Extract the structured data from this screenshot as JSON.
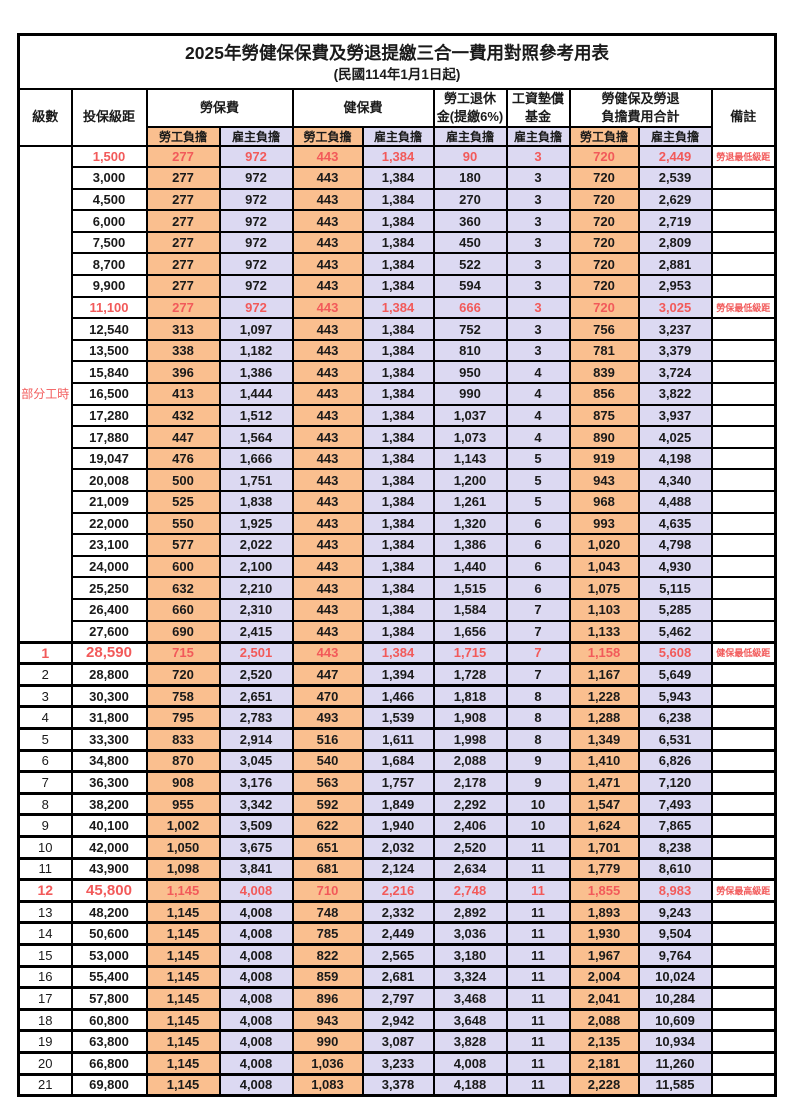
{
  "title": "2025年勞健保保費及勞退提繳三合一費用對照參考用表",
  "subtitle": "(民國114年1月1日起)",
  "colors": {
    "employee_bg": "#FABF8F",
    "employer_bg": "#DCD9F2",
    "highlight_red": "#F25A5A",
    "border": "#000000"
  },
  "header": {
    "level": "級數",
    "bracket": "投保級距",
    "labor_insurance": "勞保費",
    "health_insurance": "健保費",
    "pension_line1": "勞工退休",
    "pension_line2": "金(提繳6%)",
    "wage_fund_line1": "工資墊償",
    "wage_fund_line2": "基金",
    "total_line1": "勞健保及勞退",
    "total_line2": "負擔費用合計",
    "note": "備註",
    "employee": "勞工負擔",
    "employer": "雇主負擔"
  },
  "table": {
    "part_time_label": "部分工時",
    "part_time_span": 23,
    "rows": [
      {
        "level": "",
        "bracket": "1,500",
        "values": [
          "277",
          "972",
          "443",
          "1,384",
          "90",
          "3",
          "720",
          "2,449"
        ],
        "note": "勞退最低級距",
        "red": true,
        "bold": false
      },
      {
        "level": "",
        "bracket": "3,000",
        "values": [
          "277",
          "972",
          "443",
          "1,384",
          "180",
          "3",
          "720",
          "2,539"
        ],
        "note": "",
        "red": false,
        "bold": false
      },
      {
        "level": "",
        "bracket": "4,500",
        "values": [
          "277",
          "972",
          "443",
          "1,384",
          "270",
          "3",
          "720",
          "2,629"
        ],
        "note": "",
        "red": false,
        "bold": false
      },
      {
        "level": "",
        "bracket": "6,000",
        "values": [
          "277",
          "972",
          "443",
          "1,384",
          "360",
          "3",
          "720",
          "2,719"
        ],
        "note": "",
        "red": false,
        "bold": false
      },
      {
        "level": "",
        "bracket": "7,500",
        "values": [
          "277",
          "972",
          "443",
          "1,384",
          "450",
          "3",
          "720",
          "2,809"
        ],
        "note": "",
        "red": false,
        "bold": false
      },
      {
        "level": "",
        "bracket": "8,700",
        "values": [
          "277",
          "972",
          "443",
          "1,384",
          "522",
          "3",
          "720",
          "2,881"
        ],
        "note": "",
        "red": false,
        "bold": false
      },
      {
        "level": "",
        "bracket": "9,900",
        "values": [
          "277",
          "972",
          "443",
          "1,384",
          "594",
          "3",
          "720",
          "2,953"
        ],
        "note": "",
        "red": false,
        "bold": false
      },
      {
        "level": "",
        "bracket": "11,100",
        "values": [
          "277",
          "972",
          "443",
          "1,384",
          "666",
          "3",
          "720",
          "3,025"
        ],
        "note": "勞保最低級距",
        "red": true,
        "bold": false
      },
      {
        "level": "",
        "bracket": "12,540",
        "values": [
          "313",
          "1,097",
          "443",
          "1,384",
          "752",
          "3",
          "756",
          "3,237"
        ],
        "note": "",
        "red": false,
        "bold": false
      },
      {
        "level": "",
        "bracket": "13,500",
        "values": [
          "338",
          "1,182",
          "443",
          "1,384",
          "810",
          "3",
          "781",
          "3,379"
        ],
        "note": "",
        "red": false,
        "bold": false
      },
      {
        "level": "",
        "bracket": "15,840",
        "values": [
          "396",
          "1,386",
          "443",
          "1,384",
          "950",
          "4",
          "839",
          "3,724"
        ],
        "note": "",
        "red": false,
        "bold": false
      },
      {
        "level": "",
        "bracket": "16,500",
        "values": [
          "413",
          "1,444",
          "443",
          "1,384",
          "990",
          "4",
          "856",
          "3,822"
        ],
        "note": "",
        "red": false,
        "bold": false
      },
      {
        "level": "",
        "bracket": "17,280",
        "values": [
          "432",
          "1,512",
          "443",
          "1,384",
          "1,037",
          "4",
          "875",
          "3,937"
        ],
        "note": "",
        "red": false,
        "bold": false
      },
      {
        "level": "",
        "bracket": "17,880",
        "values": [
          "447",
          "1,564",
          "443",
          "1,384",
          "1,073",
          "4",
          "890",
          "4,025"
        ],
        "note": "",
        "red": false,
        "bold": false
      },
      {
        "level": "",
        "bracket": "19,047",
        "values": [
          "476",
          "1,666",
          "443",
          "1,384",
          "1,143",
          "5",
          "919",
          "4,198"
        ],
        "note": "",
        "red": false,
        "bold": false
      },
      {
        "level": "",
        "bracket": "20,008",
        "values": [
          "500",
          "1,751",
          "443",
          "1,384",
          "1,200",
          "5",
          "943",
          "4,340"
        ],
        "note": "",
        "red": false,
        "bold": false
      },
      {
        "level": "",
        "bracket": "21,009",
        "values": [
          "525",
          "1,838",
          "443",
          "1,384",
          "1,261",
          "5",
          "968",
          "4,488"
        ],
        "note": "",
        "red": false,
        "bold": false
      },
      {
        "level": "",
        "bracket": "22,000",
        "values": [
          "550",
          "1,925",
          "443",
          "1,384",
          "1,320",
          "6",
          "993",
          "4,635"
        ],
        "note": "",
        "red": false,
        "bold": false
      },
      {
        "level": "",
        "bracket": "23,100",
        "values": [
          "577",
          "2,022",
          "443",
          "1,384",
          "1,386",
          "6",
          "1,020",
          "4,798"
        ],
        "note": "",
        "red": false,
        "bold": false
      },
      {
        "level": "",
        "bracket": "24,000",
        "values": [
          "600",
          "2,100",
          "443",
          "1,384",
          "1,440",
          "6",
          "1,043",
          "4,930"
        ],
        "note": "",
        "red": false,
        "bold": false
      },
      {
        "level": "",
        "bracket": "25,250",
        "values": [
          "632",
          "2,210",
          "443",
          "1,384",
          "1,515",
          "6",
          "1,075",
          "5,115"
        ],
        "note": "",
        "red": false,
        "bold": false
      },
      {
        "level": "",
        "bracket": "26,400",
        "values": [
          "660",
          "2,310",
          "443",
          "1,384",
          "1,584",
          "7",
          "1,103",
          "5,285"
        ],
        "note": "",
        "red": false,
        "bold": false
      },
      {
        "level": "",
        "bracket": "27,600",
        "values": [
          "690",
          "2,415",
          "443",
          "1,384",
          "1,656",
          "7",
          "1,133",
          "5,462"
        ],
        "note": "",
        "red": false,
        "bold": false
      },
      {
        "level": "1",
        "bracket": "28,590",
        "values": [
          "715",
          "2,501",
          "443",
          "1,384",
          "1,715",
          "7",
          "1,158",
          "5,608"
        ],
        "note": "健保最低級距",
        "red": true,
        "bold": true
      },
      {
        "level": "2",
        "bracket": "28,800",
        "values": [
          "720",
          "2,520",
          "447",
          "1,394",
          "1,728",
          "7",
          "1,167",
          "5,649"
        ],
        "note": "",
        "red": false,
        "bold": false
      },
      {
        "level": "3",
        "bracket": "30,300",
        "values": [
          "758",
          "2,651",
          "470",
          "1,466",
          "1,818",
          "8",
          "1,228",
          "5,943"
        ],
        "note": "",
        "red": false,
        "bold": false
      },
      {
        "level": "4",
        "bracket": "31,800",
        "values": [
          "795",
          "2,783",
          "493",
          "1,539",
          "1,908",
          "8",
          "1,288",
          "6,238"
        ],
        "note": "",
        "red": false,
        "bold": false
      },
      {
        "level": "5",
        "bracket": "33,300",
        "values": [
          "833",
          "2,914",
          "516",
          "1,611",
          "1,998",
          "8",
          "1,349",
          "6,531"
        ],
        "note": "",
        "red": false,
        "bold": false
      },
      {
        "level": "6",
        "bracket": "34,800",
        "values": [
          "870",
          "3,045",
          "540",
          "1,684",
          "2,088",
          "9",
          "1,410",
          "6,826"
        ],
        "note": "",
        "red": false,
        "bold": false
      },
      {
        "level": "7",
        "bracket": "36,300",
        "values": [
          "908",
          "3,176",
          "563",
          "1,757",
          "2,178",
          "9",
          "1,471",
          "7,120"
        ],
        "note": "",
        "red": false,
        "bold": false
      },
      {
        "level": "8",
        "bracket": "38,200",
        "values": [
          "955",
          "3,342",
          "592",
          "1,849",
          "2,292",
          "10",
          "1,547",
          "7,493"
        ],
        "note": "",
        "red": false,
        "bold": false
      },
      {
        "level": "9",
        "bracket": "40,100",
        "values": [
          "1,002",
          "3,509",
          "622",
          "1,940",
          "2,406",
          "10",
          "1,624",
          "7,865"
        ],
        "note": "",
        "red": false,
        "bold": false
      },
      {
        "level": "10",
        "bracket": "42,000",
        "values": [
          "1,050",
          "3,675",
          "651",
          "2,032",
          "2,520",
          "11",
          "1,701",
          "8,238"
        ],
        "note": "",
        "red": false,
        "bold": false
      },
      {
        "level": "11",
        "bracket": "43,900",
        "values": [
          "1,098",
          "3,841",
          "681",
          "2,124",
          "2,634",
          "11",
          "1,779",
          "8,610"
        ],
        "note": "",
        "red": false,
        "bold": false
      },
      {
        "level": "12",
        "bracket": "45,800",
        "values": [
          "1,145",
          "4,008",
          "710",
          "2,216",
          "2,748",
          "11",
          "1,855",
          "8,983"
        ],
        "note": "勞保最高級距",
        "red": true,
        "bold": true
      },
      {
        "level": "13",
        "bracket": "48,200",
        "values": [
          "1,145",
          "4,008",
          "748",
          "2,332",
          "2,892",
          "11",
          "1,893",
          "9,243"
        ],
        "note": "",
        "red": false,
        "bold": false
      },
      {
        "level": "14",
        "bracket": "50,600",
        "values": [
          "1,145",
          "4,008",
          "785",
          "2,449",
          "3,036",
          "11",
          "1,930",
          "9,504"
        ],
        "note": "",
        "red": false,
        "bold": false
      },
      {
        "level": "15",
        "bracket": "53,000",
        "values": [
          "1,145",
          "4,008",
          "822",
          "2,565",
          "3,180",
          "11",
          "1,967",
          "9,764"
        ],
        "note": "",
        "red": false,
        "bold": false
      },
      {
        "level": "16",
        "bracket": "55,400",
        "values": [
          "1,145",
          "4,008",
          "859",
          "2,681",
          "3,324",
          "11",
          "2,004",
          "10,024"
        ],
        "note": "",
        "red": false,
        "bold": false
      },
      {
        "level": "17",
        "bracket": "57,800",
        "values": [
          "1,145",
          "4,008",
          "896",
          "2,797",
          "3,468",
          "11",
          "2,041",
          "10,284"
        ],
        "note": "",
        "red": false,
        "bold": false
      },
      {
        "level": "18",
        "bracket": "60,800",
        "values": [
          "1,145",
          "4,008",
          "943",
          "2,942",
          "3,648",
          "11",
          "2,088",
          "10,609"
        ],
        "note": "",
        "red": false,
        "bold": false
      },
      {
        "level": "19",
        "bracket": "63,800",
        "values": [
          "1,145",
          "4,008",
          "990",
          "3,087",
          "3,828",
          "11",
          "2,135",
          "10,934"
        ],
        "note": "",
        "red": false,
        "bold": false
      },
      {
        "level": "20",
        "bracket": "66,800",
        "values": [
          "1,145",
          "4,008",
          "1,036",
          "3,233",
          "4,008",
          "11",
          "2,181",
          "11,260"
        ],
        "note": "",
        "red": false,
        "bold": false
      },
      {
        "level": "21",
        "bracket": "69,800",
        "values": [
          "1,145",
          "4,008",
          "1,083",
          "3,378",
          "4,188",
          "11",
          "2,228",
          "11,585"
        ],
        "note": "",
        "red": false,
        "bold": false
      }
    ]
  }
}
